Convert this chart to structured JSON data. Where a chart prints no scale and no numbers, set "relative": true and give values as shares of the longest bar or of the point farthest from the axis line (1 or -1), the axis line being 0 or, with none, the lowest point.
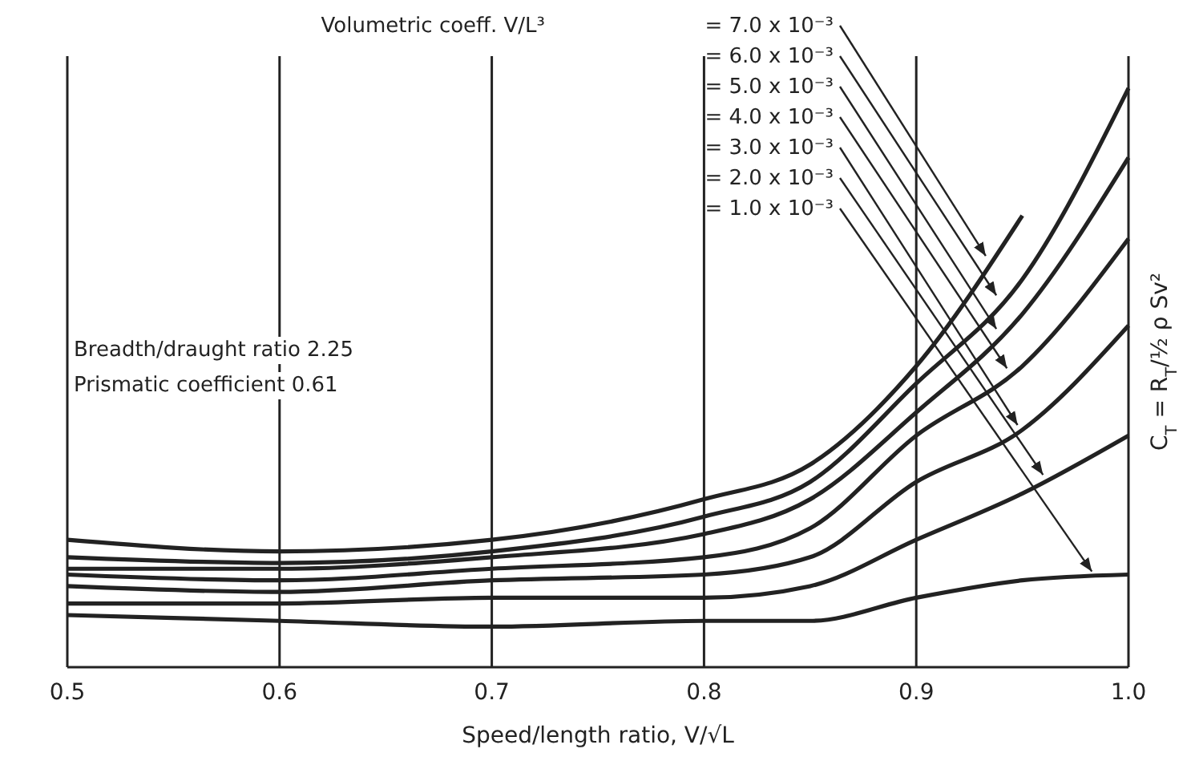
{
  "chart_data": {
    "type": "line",
    "relative": true,
    "xlabel": "Speed/length ratio, V/√L",
    "ylabel": "C$_{T}$ = R$_{T}$/½ ρ Sv²",
    "legend_title": "Volumetric coeff. V/L³",
    "xlim": [
      0.5,
      1.0
    ],
    "xticks": [
      0.5,
      0.6,
      0.7,
      0.8,
      0.9,
      {
        "value": 1.0,
        "label": "1.0"
      }
    ],
    "grid": "x",
    "legend": false,
    "marker": "none",
    "line_style": "solid",
    "annotations": [
      "Breadth/draught ratio 2.25",
      "Prismatic coefficient 0.61"
    ],
    "series": [
      {
        "name": "= 7.0 x 10⁻³",
        "color": "#222222",
        "x": [
          0.5,
          0.6,
          0.7,
          0.8,
          0.85,
          0.9,
          0.95
        ],
        "values": [
          0.22,
          0.2,
          0.22,
          0.29,
          0.35,
          0.52,
          0.78
        ]
      },
      {
        "name": "= 6.0 x 10⁻³",
        "color": "#222222",
        "x": [
          0.5,
          0.6,
          0.7,
          0.8,
          0.85,
          0.9,
          0.95,
          1.0
        ],
        "values": [
          0.19,
          0.18,
          0.2,
          0.26,
          0.32,
          0.49,
          0.67,
          1
        ]
      },
      {
        "name": "= 5.0 x 10⁻³",
        "color": "#222222",
        "x": [
          0.5,
          0.6,
          0.7,
          0.8,
          0.85,
          0.9,
          0.95,
          1.0
        ],
        "values": [
          0.17,
          0.17,
          0.19,
          0.23,
          0.29,
          0.44,
          0.61,
          0.88
        ]
      },
      {
        "name": "= 4.0 x 10⁻³",
        "color": "#222222",
        "x": [
          0.5,
          0.6,
          0.7,
          0.8,
          0.85,
          0.9,
          0.95,
          1.0
        ],
        "values": [
          0.16,
          0.15,
          0.17,
          0.19,
          0.24,
          0.4,
          0.52,
          0.74
        ]
      },
      {
        "name": "= 3.0 x 10⁻³",
        "color": "#222222",
        "x": [
          0.5,
          0.6,
          0.7,
          0.8,
          0.85,
          0.9,
          0.95,
          1.0
        ],
        "values": [
          0.14,
          0.13,
          0.15,
          0.16,
          0.19,
          0.32,
          0.41,
          0.59
        ]
      },
      {
        "name": "= 2.0 x 10⁻³",
        "color": "#222222",
        "x": [
          0.5,
          0.6,
          0.7,
          0.8,
          0.85,
          0.9,
          0.95,
          1.0
        ],
        "values": [
          0.11,
          0.11,
          0.12,
          0.12,
          0.14,
          0.22,
          0.3,
          0.4
        ]
      },
      {
        "name": "= 1.0 x 10⁻³",
        "color": "#222222",
        "x": [
          0.5,
          0.6,
          0.7,
          0.8,
          0.85,
          0.9,
          0.95,
          1.0
        ],
        "values": [
          0.09,
          0.08,
          0.07,
          0.08,
          0.08,
          0.12,
          0.15,
          0.16
        ]
      }
    ]
  }
}
